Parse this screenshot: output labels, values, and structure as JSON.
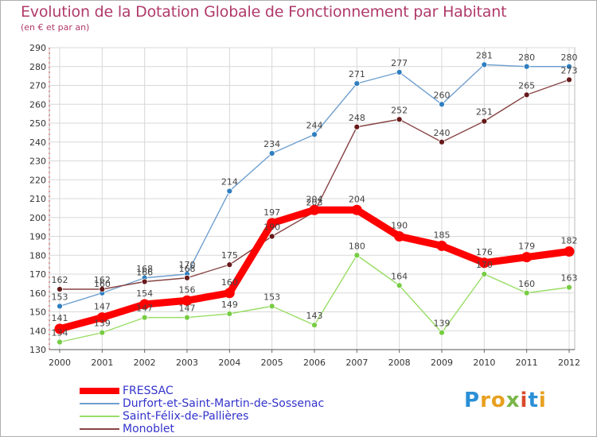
{
  "title": "Evolution de la Dotation Globale de Fonctionnement par Habitant",
  "subtitle": "(en € et par an)",
  "logo": {
    "text": "Proxiti",
    "letters": [
      {
        "ch": "P",
        "color": "#2a8fd6"
      },
      {
        "ch": "r",
        "color": "#e8a020"
      },
      {
        "ch": "o",
        "color": "#e8a020"
      },
      {
        "ch": "x",
        "color": "#7ab648"
      },
      {
        "ch": "i",
        "color": "#d94a2a"
      },
      {
        "ch": "t",
        "color": "#2a8fd6"
      },
      {
        "ch": "i",
        "color": "#e8a020"
      }
    ]
  },
  "chart_data": {
    "type": "line",
    "title": "Evolution de la Dotation Globale de Fonctionnement par Habitant",
    "subtitle": "(en € et par an)",
    "xlabel": "",
    "ylabel": "",
    "x": [
      "2000",
      "2001",
      "2002",
      "2003",
      "2004",
      "2005",
      "2006",
      "2007",
      "2008",
      "2009",
      "2010",
      "2011",
      "2012"
    ],
    "y_ticks": [
      130,
      140,
      150,
      160,
      170,
      180,
      190,
      200,
      210,
      220,
      230,
      240,
      250,
      260,
      270,
      280,
      290
    ],
    "ylim": [
      130,
      290
    ],
    "grid": true,
    "legend_position": "bottom-left",
    "series": [
      {
        "name": "FRESSAC",
        "color": "#ff0000",
        "values": [
          141,
          147,
          154,
          156,
          160,
          197,
          204,
          204,
          190,
          185,
          176,
          179,
          182
        ]
      },
      {
        "name": "Durfort-et-Saint-Martin-de-Sossenac",
        "color": "#6f9fcf",
        "marker_color": "#2f7fc0",
        "values": [
          153,
          160,
          168,
          170,
          214,
          234,
          244,
          271,
          277,
          260,
          281,
          280,
          280
        ]
      },
      {
        "name": "Saint-Félix-de-Pallières",
        "color": "#99dd66",
        "marker_color": "#77cc44",
        "values": [
          134,
          139,
          147,
          147,
          149,
          153,
          143,
          180,
          164,
          139,
          170,
          160,
          163
        ]
      },
      {
        "name": "Monoblet",
        "color": "#884444",
        "marker_color": "#661a1a",
        "values": [
          162,
          162,
          166,
          168,
          175,
          190,
          203,
          248,
          252,
          240,
          251,
          265,
          273
        ]
      }
    ]
  }
}
